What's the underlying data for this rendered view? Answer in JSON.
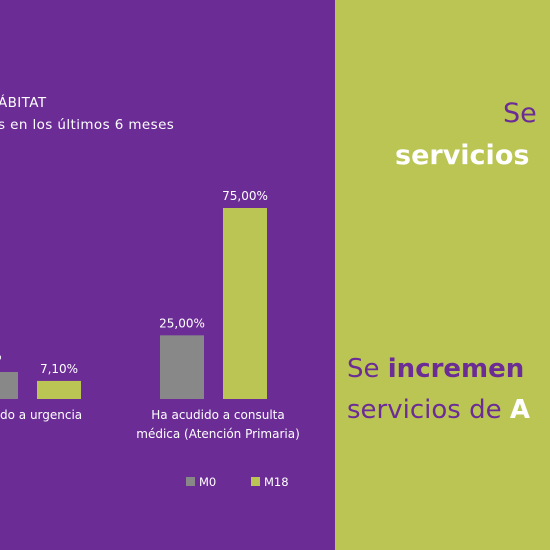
{
  "colors": {
    "background_left": "#6b2c96",
    "background_right": "#bac553",
    "series_m0": "#888888",
    "series_m18": "#bac553",
    "text_light": "#ffffff",
    "text_purple": "#6b2c96"
  },
  "chart_data": {
    "type": "bar",
    "title": "ÁBITAT",
    "subtitle": "s en los últimos 6 meses",
    "categories": [
      "do a urgencia",
      "Ha acudido a consulta\nmédica (Atención Primaria)"
    ],
    "series": [
      {
        "name": "M0",
        "values": [
          null,
          25.0
        ],
        "labels": [
          "%",
          "25,00%"
        ]
      },
      {
        "name": "M18",
        "values": [
          7.1,
          75.0
        ],
        "labels": [
          "7,10%",
          "75,00%"
        ]
      }
    ],
    "ylim": [
      0,
      75
    ],
    "grid": false,
    "legend_position": "bottom-right"
  },
  "right_panel": {
    "line1": "Se",
    "line2": "servicios",
    "line3_prefix": "Se ",
    "line3_bold": "incremen",
    "line4_prefix": "servicios de ",
    "line4_bold": "A"
  }
}
